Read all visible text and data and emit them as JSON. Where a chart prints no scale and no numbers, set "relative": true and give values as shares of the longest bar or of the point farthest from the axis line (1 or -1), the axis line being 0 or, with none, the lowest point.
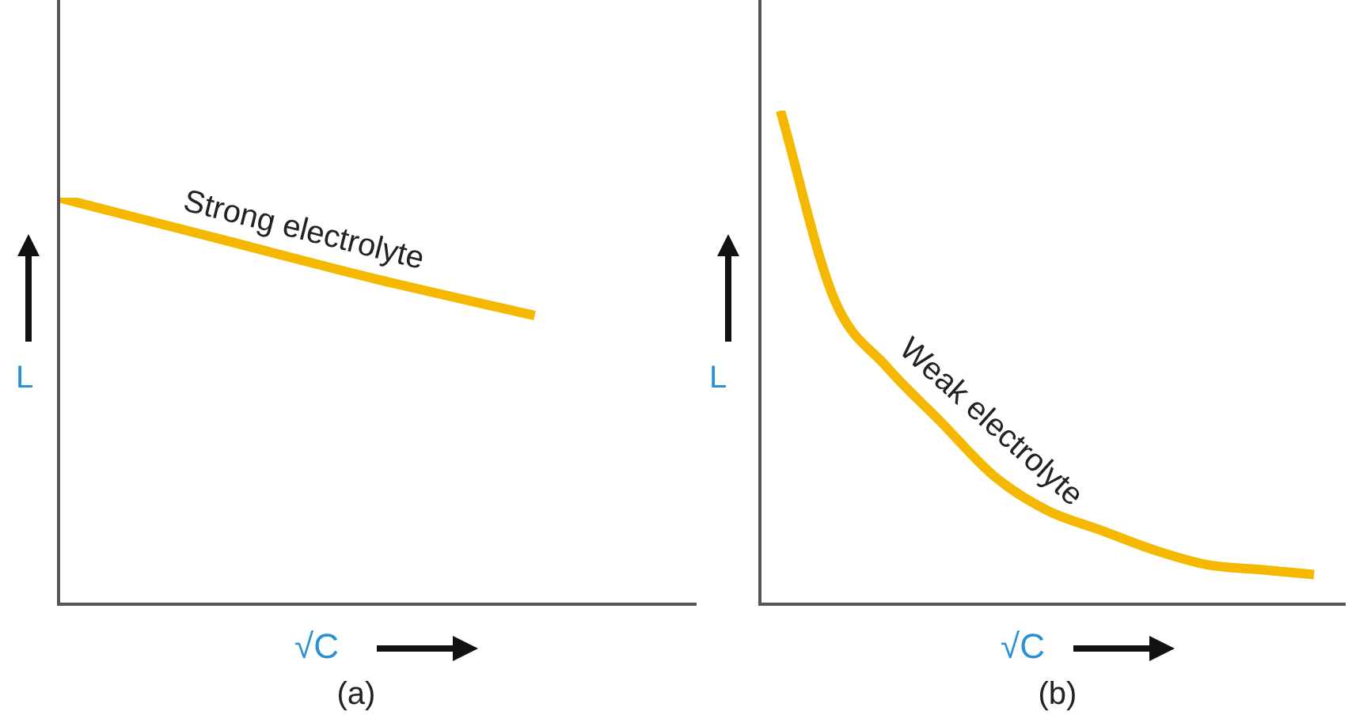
{
  "chart_data": [
    {
      "type": "line",
      "title": "(a)",
      "xlabel": "√C",
      "ylabel": "L",
      "relative": true,
      "categories": [
        null,
        null,
        null,
        null,
        null
      ],
      "series": [
        {
          "color": "#f5b800",
          "values": [
            1,
            0.9,
            0.8,
            0.71,
            null
          ]
        }
      ],
      "annotations": [
        "Strong electrolyte"
      ]
    },
    {
      "type": "line",
      "title": "(b)",
      "xlabel": "√C",
      "ylabel": "L",
      "relative": true,
      "categories": [
        null,
        null,
        null,
        null,
        null,
        null,
        null,
        null,
        null,
        null,
        null
      ],
      "series": [
        {
          "color": "#f5b800",
          "values": [
            1,
            0.62,
            0.48,
            0.37,
            0.26,
            0.19,
            0.15,
            0.11,
            0.08,
            0.07,
            0.06
          ]
        }
      ],
      "annotations": [
        "Weak electrolyte"
      ]
    }
  ]
}
